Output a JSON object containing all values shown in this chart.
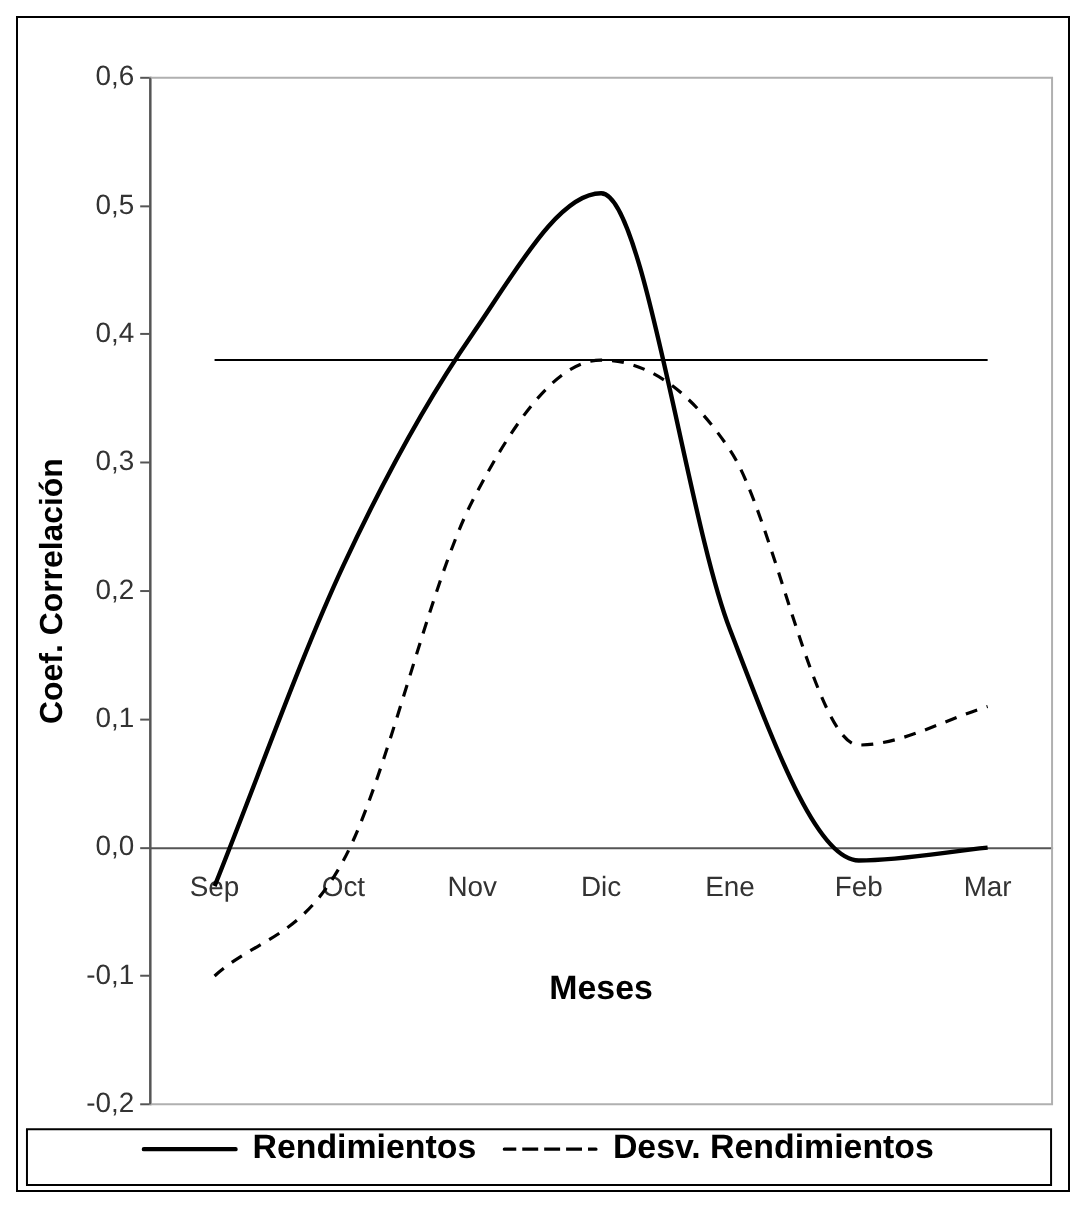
{
  "chart_data": {
    "type": "line",
    "xlabel": "Meses",
    "ylabel": "Coef. Correlación",
    "categories": [
      "Sep",
      "Oct",
      "Nov",
      "Dic",
      "Ene",
      "Feb",
      "Mar"
    ],
    "series": [
      {
        "name": "Rendimientos",
        "color": "#000000",
        "line_style": "solid",
        "values": [
          -0.03,
          0.22,
          0.4,
          0.51,
          0.17,
          -0.01,
          0.0
        ]
      },
      {
        "name": "Desv. Rendimientos",
        "color": "#000000",
        "line_style": "dashed",
        "values": [
          -0.1,
          -0.01,
          0.27,
          0.38,
          0.31,
          0.08,
          0.11
        ]
      }
    ],
    "ylim": [
      -0.2,
      0.6
    ],
    "yticks": [
      {
        "value": -0.2,
        "label": "-0,2"
      },
      {
        "value": -0.1,
        "label": "-0,1"
      },
      {
        "value": 0,
        "label": "0,0"
      },
      {
        "value": 0.1,
        "label": "0,1"
      },
      {
        "value": 0.2,
        "label": "0,2"
      },
      {
        "value": 0.3,
        "label": "0,3"
      },
      {
        "value": 0.4,
        "label": "0,4"
      },
      {
        "value": 0.5,
        "label": "0,5"
      },
      {
        "value": 0.6,
        "label": "0,6"
      }
    ],
    "ref_lines": [
      {
        "axis": "y",
        "value": 0.38,
        "color": "#000000"
      }
    ],
    "grid": false,
    "legend": "bottom",
    "marker": "none"
  }
}
